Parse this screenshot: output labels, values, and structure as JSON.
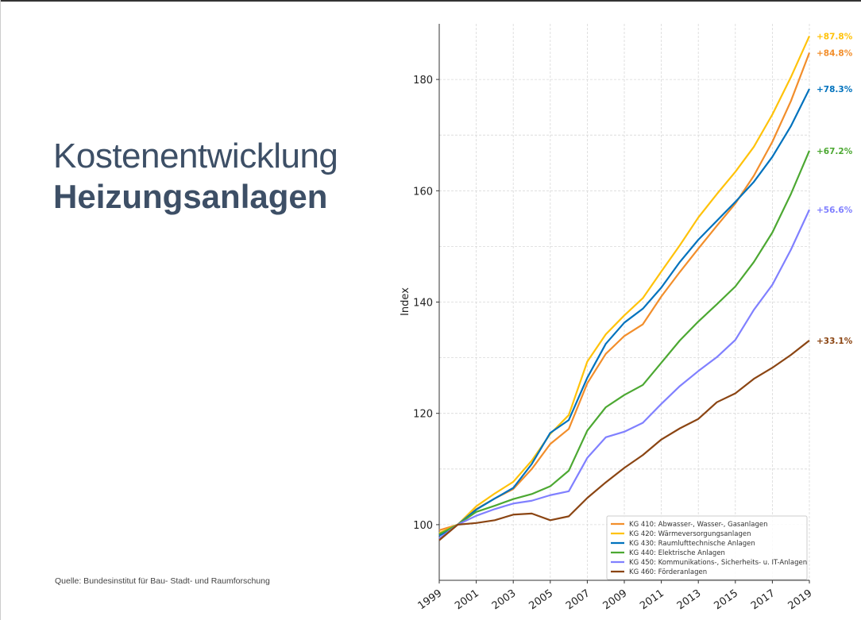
{
  "title_light": "Kostenentwicklung",
  "title_bold": "Heizungsanlagen",
  "source": "Quelle: Bundesinstitut für Bau- Stadt- und Raumforschung",
  "chart_data": {
    "type": "line",
    "xlabel": "",
    "ylabel": "Index",
    "xlim": [
      1999,
      2019
    ],
    "ylim": [
      90,
      190
    ],
    "x": [
      1999,
      2000,
      2001,
      2002,
      2003,
      2004,
      2005,
      2006,
      2007,
      2008,
      2009,
      2010,
      2011,
      2012,
      2013,
      2014,
      2015,
      2016,
      2017,
      2018,
      2019
    ],
    "xticks": [
      "1999",
      "2001",
      "2003",
      "2005",
      "2007",
      "2009",
      "2011",
      "2013",
      "2015",
      "2017",
      "2019"
    ],
    "yticks": [
      100,
      120,
      140,
      160,
      180
    ],
    "grid": true,
    "legend_position": "bottom-right",
    "series": [
      {
        "name": "KG 410: Abwasser-, Wasser-, Gasanlagen",
        "color": "#f28e2b",
        "label": "+84.8%",
        "values": [
          99.0,
          100,
          102.8,
          104.7,
          106.4,
          110.0,
          114.5,
          117.2,
          125.4,
          130.7,
          133.9,
          136.0,
          141.0,
          145.4,
          149.6,
          153.7,
          157.7,
          162.7,
          168.8,
          176.1,
          184.8
        ]
      },
      {
        "name": "KG 420: Wärmeversorgungsanlagen",
        "color": "#ffc20a",
        "label": "+87.8%",
        "values": [
          98.5,
          100,
          103.3,
          105.6,
          107.7,
          111.5,
          116.3,
          119.7,
          129.3,
          134.2,
          137.6,
          140.7,
          145.5,
          150.2,
          155.2,
          159.4,
          163.4,
          167.9,
          173.7,
          180.4,
          187.8
        ]
      },
      {
        "name": "KG 430: Raumlufttechnische Anlagen",
        "color": "#0072bd",
        "label": "+78.3%",
        "values": [
          98.0,
          100,
          102.7,
          104.7,
          106.6,
          110.9,
          116.5,
          118.8,
          126.4,
          132.5,
          136.3,
          138.8,
          142.6,
          147.2,
          151.2,
          154.6,
          158.0,
          161.6,
          166.1,
          171.6,
          178.3
        ]
      },
      {
        "name": "KG 440: Elektrische Anlagen",
        "color": "#4ca832",
        "label": "+67.2%",
        "values": [
          98.3,
          100,
          102.3,
          103.4,
          104.6,
          105.5,
          106.9,
          109.7,
          116.9,
          121.1,
          123.3,
          125.1,
          129.1,
          133.1,
          136.5,
          139.6,
          142.8,
          147.2,
          152.5,
          159.4,
          167.2
        ]
      },
      {
        "name": "KG 450: Kommunikations-, Sicherheits- u. IT-Anlagen",
        "color": "#8080ff",
        "label": "+56.6%",
        "values": [
          97.5,
          100,
          101.6,
          102.8,
          103.8,
          104.3,
          105.3,
          106.0,
          112.0,
          115.7,
          116.7,
          118.3,
          121.7,
          124.9,
          127.6,
          130.1,
          133.2,
          138.6,
          143.1,
          149.4,
          156.6
        ]
      },
      {
        "name": "KG 460: Förderanlagen",
        "color": "#8b4513",
        "label": "+33.1%",
        "values": [
          97.2,
          100,
          100.3,
          100.8,
          101.8,
          102.0,
          100.8,
          101.5,
          104.8,
          107.6,
          110.2,
          112.5,
          115.3,
          117.3,
          119.0,
          122.0,
          123.6,
          126.2,
          128.2,
          130.5,
          133.1
        ]
      }
    ]
  }
}
